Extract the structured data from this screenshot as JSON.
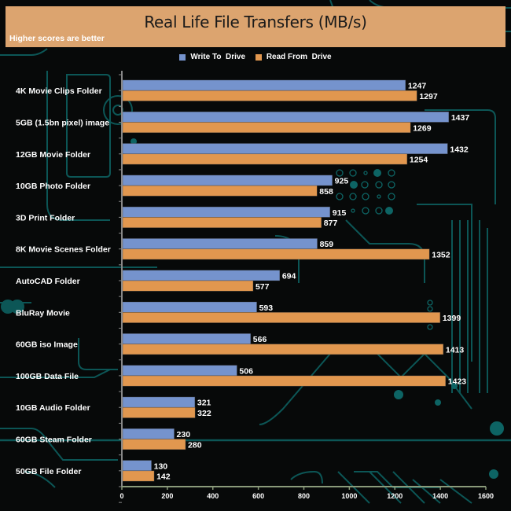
{
  "chart_data": {
    "type": "bar",
    "orientation": "horizontal",
    "title": "Real Life File Transfers (MB/s)",
    "subtitle": "Higher scores are better",
    "xlabel": "",
    "ylabel": "",
    "xlim": [
      0,
      1600
    ],
    "xticks": [
      0,
      200,
      400,
      600,
      800,
      1000,
      1200,
      1400,
      1600
    ],
    "grid": false,
    "legend_position": "top-center",
    "categories": [
      "4K Movie Clips Folder",
      "5GB (1.5bn pixel) image",
      "12GB Movie Folder",
      "10GB Photo Folder",
      "3D Print Folder",
      "8K Movie Scenes Folder",
      "AutoCAD Folder",
      "BluRay Movie",
      "60GB iso Image",
      "100GB Data File",
      "10GB Audio Folder",
      "60GB Steam Folder",
      "50GB File Folder"
    ],
    "series": [
      {
        "name": "Write To  Drive",
        "color": "#7593cd",
        "values": [
          1247,
          1437,
          1432,
          925,
          915,
          859,
          694,
          593,
          566,
          506,
          321,
          230,
          130
        ]
      },
      {
        "name": "Read From  Drive",
        "color": "#e1974f",
        "values": [
          1297,
          1269,
          1254,
          858,
          877,
          1352,
          577,
          1399,
          1413,
          1423,
          322,
          280,
          142
        ]
      }
    ]
  },
  "colors": {
    "banner": "#dca46f",
    "background": "#070909",
    "circuit": "#0f6f6f",
    "axis": "#8a9a7a"
  }
}
